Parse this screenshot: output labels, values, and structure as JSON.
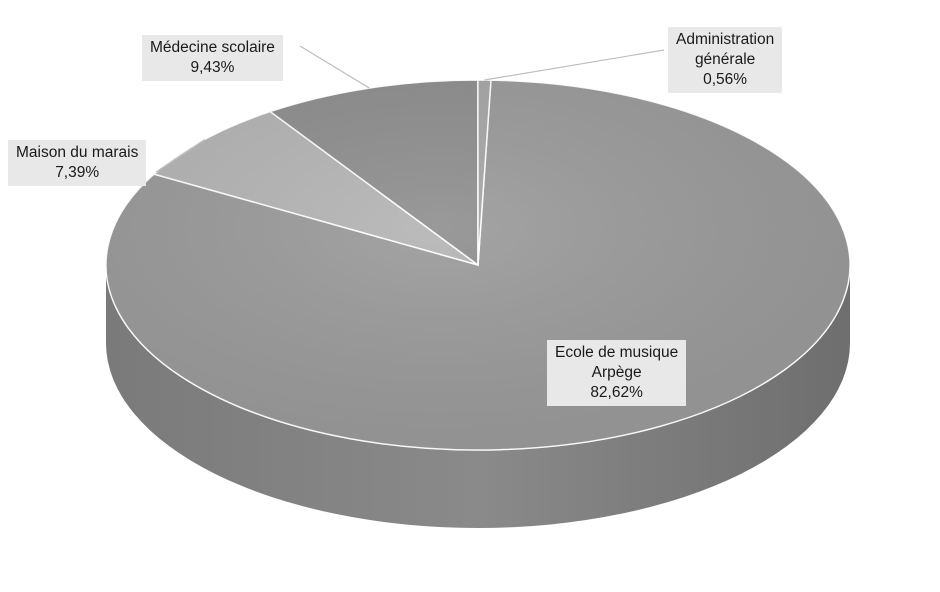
{
  "chart_data": {
    "type": "pie",
    "title": "",
    "three_d": true,
    "legend": "none",
    "slices": [
      {
        "name": "Ecole de musique Arpège",
        "value": 82.62,
        "label_lines": [
          "Ecole de musique",
          "Arpège",
          "82,62%"
        ],
        "color": "#9a9a9a"
      },
      {
        "name": "Maison du marais",
        "value": 7.39,
        "label_lines": [
          "Maison du marais",
          "7,39%"
        ],
        "color": "#b4b4b4"
      },
      {
        "name": "Médecine scolaire",
        "value": 9.43,
        "label_lines": [
          "Médecine scolaire",
          "9,43%"
        ],
        "color": "#8e8e8e"
      },
      {
        "name": "Administration générale",
        "value": 0.56,
        "label_lines": [
          "Administration",
          "générale",
          "0,56%"
        ],
        "color": "#a6a6a6"
      }
    ]
  }
}
